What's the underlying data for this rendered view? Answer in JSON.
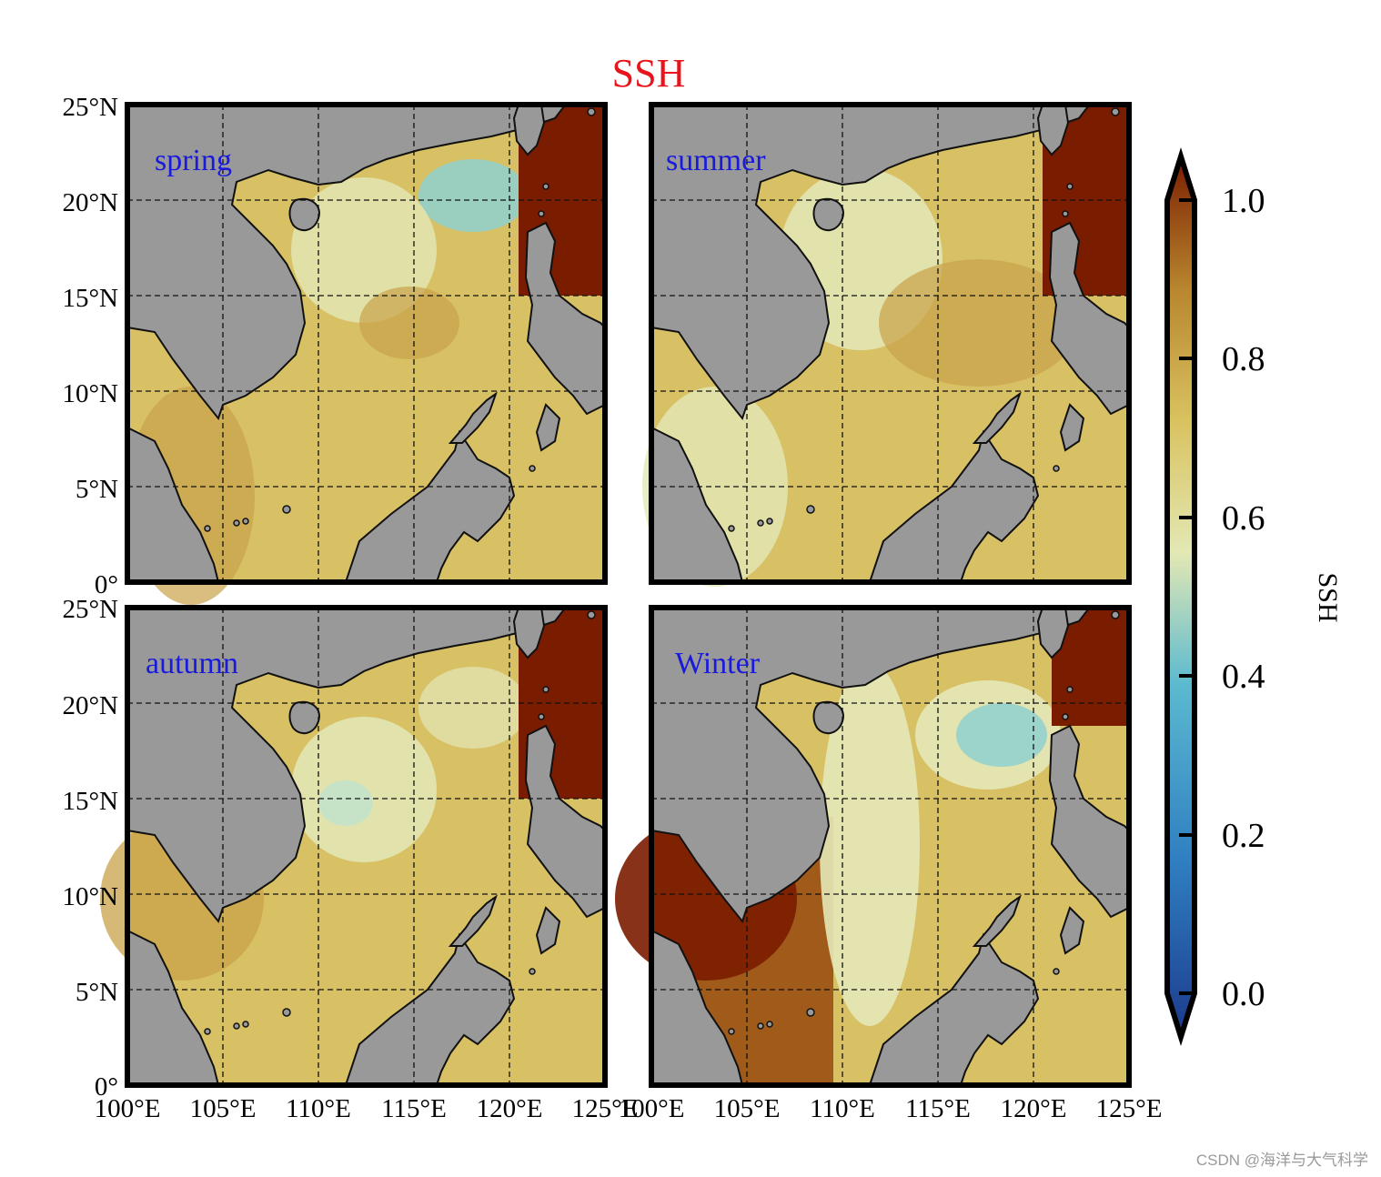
{
  "figure": {
    "title": "SSH",
    "title_color": "#e8141c",
    "panel_label_color": "#1a1adc",
    "land_color": "#999999",
    "grid_style": "dashed",
    "panels": [
      {
        "label": "spring"
      },
      {
        "label": "summer"
      },
      {
        "label": "autumn"
      },
      {
        "label": "Winter"
      }
    ],
    "lon_ticks": [
      "100°E",
      "105°E",
      "110°E",
      "115°E",
      "120°E",
      "125°E"
    ],
    "lat_ticks": [
      "0°",
      "5°N",
      "10°N",
      "15°N",
      "20°N",
      "25°N"
    ],
    "colorbar": {
      "label": "SSH",
      "ticks": [
        "0.0",
        "0.2",
        "0.4",
        "0.6",
        "0.8",
        "1.0"
      ],
      "range": [
        0.0,
        1.0
      ],
      "extend": "both",
      "colors": [
        "#1c3a8c",
        "#2f7fc1",
        "#5bbad0",
        "#e3e8b4",
        "#d9c25f",
        "#b8862e",
        "#7a1c00"
      ]
    }
  },
  "map_data": {
    "extent": {
      "lon": [
        100,
        125
      ],
      "lat": [
        0,
        25
      ]
    },
    "variable": "SSH",
    "seasons": [
      "spring",
      "summer",
      "autumn",
      "Winter"
    ]
  },
  "watermark": "CSDN @海洋与大气科学"
}
